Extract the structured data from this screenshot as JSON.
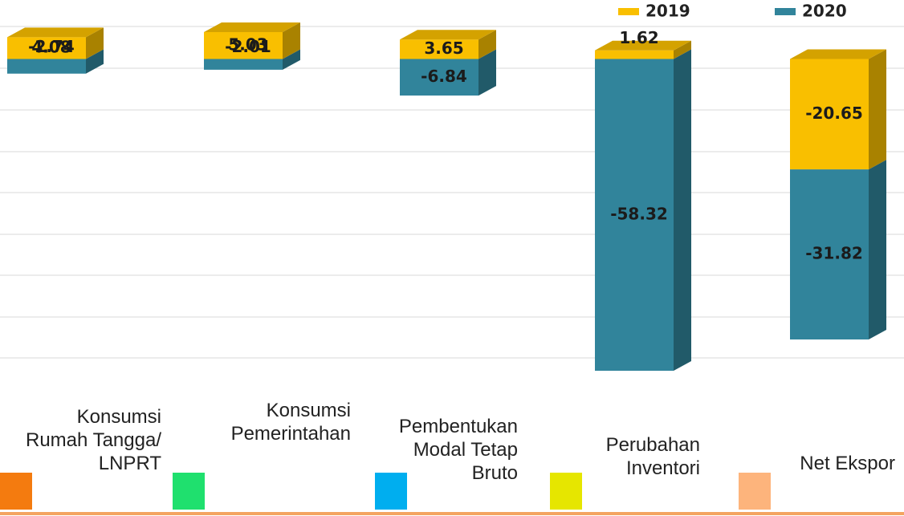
{
  "chart_data": {
    "type": "bar",
    "stacked": true,
    "categories": [
      "Konsumsi\nRumah Tangga/\nLNPRT",
      "Konsumsi\nPemerintahan",
      "Pembentukan\nModal Tetap\nBruto",
      "Perubahan\nInventori",
      "Net Ekspor"
    ],
    "category_colors": [
      "#f47b0f",
      "#1fe06e",
      "#00aeef",
      "#e6e600",
      "#fdb47c"
    ],
    "series": [
      {
        "name": "2019",
        "color": "#f9bf00",
        "values": [
          4.08,
          5.03,
          3.65,
          1.62,
          -20.65
        ]
      },
      {
        "name": "2020",
        "color": "#31849b",
        "values": [
          -2.74,
          -2.01,
          -6.84,
          -58.32,
          -31.82
        ]
      }
    ],
    "grid": true,
    "legend": "top-right"
  }
}
